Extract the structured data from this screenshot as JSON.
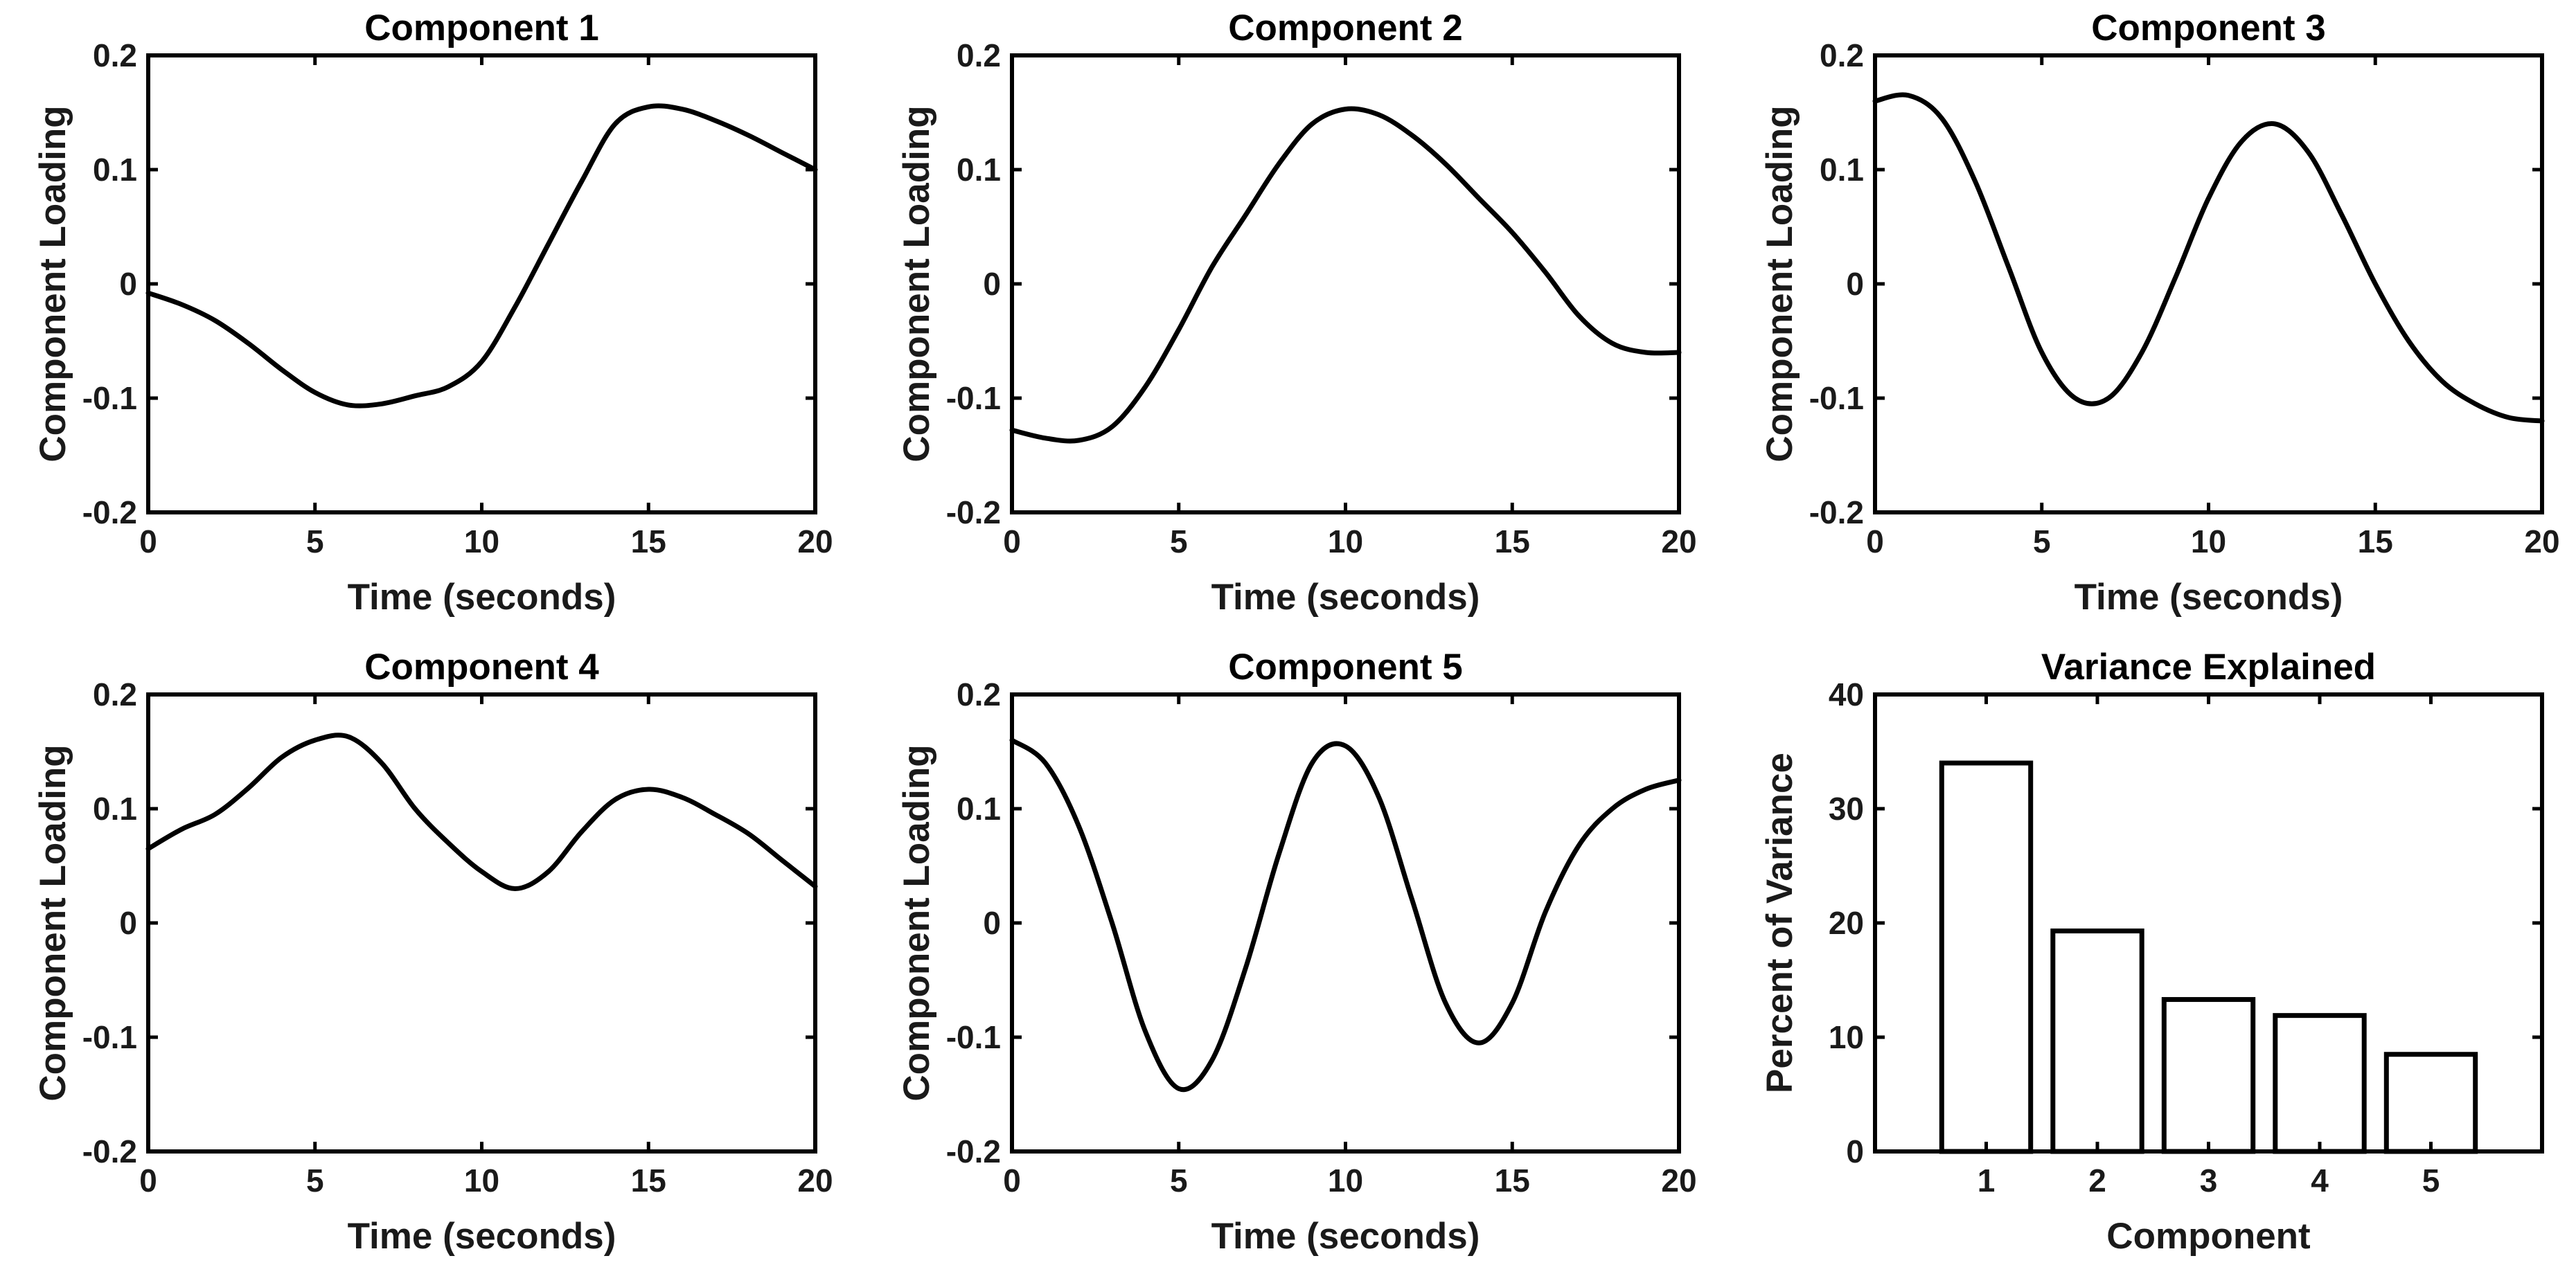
{
  "chart_data": [
    {
      "type": "line",
      "title": "Component 1",
      "xlabel": "Time (seconds)",
      "ylabel": "Component Loading",
      "xlim": [
        0,
        20
      ],
      "ylim": [
        -0.2,
        0.2
      ],
      "xticks": [
        0,
        5,
        10,
        15,
        20
      ],
      "xtick_labels": [
        "0",
        "5",
        "10",
        "15",
        "20"
      ],
      "yticks": [
        -0.2,
        -0.1,
        0,
        0.1,
        0.2
      ],
      "ytick_labels": [
        "-0.2",
        "-0.1",
        "0",
        "0.1",
        "0.2"
      ],
      "series": [
        {
          "name": "Component 1",
          "x": [
            0,
            1,
            2,
            3,
            4,
            5,
            6,
            7,
            8,
            9,
            10,
            11,
            12,
            13,
            14,
            15,
            16,
            17,
            18,
            19,
            20
          ],
          "values": [
            -0.008,
            -0.018,
            -0.032,
            -0.052,
            -0.075,
            -0.095,
            -0.106,
            -0.105,
            -0.098,
            -0.09,
            -0.068,
            -0.02,
            0.035,
            0.09,
            0.14,
            0.155,
            0.153,
            0.143,
            0.13,
            0.115,
            0.1
          ]
        }
      ]
    },
    {
      "type": "line",
      "title": "Component 2",
      "xlabel": "Time (seconds)",
      "ylabel": "Component Loading",
      "xlim": [
        0,
        20
      ],
      "ylim": [
        -0.2,
        0.2
      ],
      "xticks": [
        0,
        5,
        10,
        15,
        20
      ],
      "xtick_labels": [
        "0",
        "5",
        "10",
        "15",
        "20"
      ],
      "yticks": [
        -0.2,
        -0.1,
        0,
        0.1,
        0.2
      ],
      "ytick_labels": [
        "-0.2",
        "-0.1",
        "0",
        "0.1",
        "0.2"
      ],
      "series": [
        {
          "name": "Component 2",
          "x": [
            0,
            1,
            2,
            3,
            4,
            5,
            6,
            7,
            8,
            9,
            10,
            11,
            12,
            13,
            14,
            15,
            16,
            17,
            18,
            19,
            20
          ],
          "values": [
            -0.128,
            -0.135,
            -0.137,
            -0.125,
            -0.09,
            -0.04,
            0.015,
            0.06,
            0.105,
            0.14,
            0.153,
            0.148,
            0.13,
            0.105,
            0.075,
            0.045,
            0.01,
            -0.028,
            -0.052,
            -0.06,
            -0.06
          ]
        }
      ]
    },
    {
      "type": "line",
      "title": "Component 3",
      "xlabel": "Time (seconds)",
      "ylabel": "Component Loading",
      "xlim": [
        0,
        20
      ],
      "ylim": [
        -0.2,
        0.2
      ],
      "xticks": [
        0,
        5,
        10,
        15,
        20
      ],
      "xtick_labels": [
        "0",
        "5",
        "10",
        "15",
        "20"
      ],
      "yticks": [
        -0.2,
        -0.1,
        0,
        0.1,
        0.2
      ],
      "ytick_labels": [
        "-0.2",
        "-0.1",
        "0",
        "0.1",
        "0.2"
      ],
      "series": [
        {
          "name": "Component 3",
          "x": [
            0,
            1,
            2,
            3,
            4,
            5,
            6,
            7,
            8,
            9,
            10,
            11,
            12,
            13,
            14,
            15,
            16,
            17,
            18,
            19,
            20
          ],
          "values": [
            0.16,
            0.165,
            0.145,
            0.09,
            0.015,
            -0.06,
            -0.1,
            -0.1,
            -0.06,
            0.005,
            0.075,
            0.125,
            0.14,
            0.115,
            0.06,
            0.0,
            -0.05,
            -0.085,
            -0.105,
            -0.117,
            -0.12
          ]
        }
      ]
    },
    {
      "type": "line",
      "title": "Component 4",
      "xlabel": "Time (seconds)",
      "ylabel": "Component Loading",
      "xlim": [
        0,
        20
      ],
      "ylim": [
        -0.2,
        0.2
      ],
      "xticks": [
        0,
        5,
        10,
        15,
        20
      ],
      "xtick_labels": [
        "0",
        "5",
        "10",
        "15",
        "20"
      ],
      "yticks": [
        -0.2,
        -0.1,
        0,
        0.1,
        0.2
      ],
      "ytick_labels": [
        "-0.2",
        "-0.1",
        "0",
        "0.1",
        "0.2"
      ],
      "series": [
        {
          "name": "Component 4",
          "x": [
            0,
            1,
            2,
            3,
            4,
            5,
            6,
            7,
            8,
            9,
            10,
            11,
            12,
            13,
            14,
            15,
            16,
            17,
            18,
            19,
            20
          ],
          "values": [
            0.065,
            0.082,
            0.095,
            0.118,
            0.145,
            0.16,
            0.163,
            0.14,
            0.1,
            0.07,
            0.045,
            0.03,
            0.045,
            0.08,
            0.108,
            0.117,
            0.11,
            0.095,
            0.078,
            0.055,
            0.032
          ]
        }
      ]
    },
    {
      "type": "line",
      "title": "Component 5",
      "xlabel": "Time (seconds)",
      "ylabel": "Component Loading",
      "xlim": [
        0,
        20
      ],
      "ylim": [
        -0.2,
        0.2
      ],
      "xticks": [
        0,
        5,
        10,
        15,
        20
      ],
      "xtick_labels": [
        "0",
        "5",
        "10",
        "15",
        "20"
      ],
      "yticks": [
        -0.2,
        -0.1,
        0,
        0.1,
        0.2
      ],
      "ytick_labels": [
        "-0.2",
        "-0.1",
        "0",
        "0.1",
        "0.2"
      ],
      "series": [
        {
          "name": "Component 5",
          "x": [
            0,
            1,
            2,
            3,
            4,
            5,
            6,
            7,
            8,
            9,
            10,
            11,
            12,
            13,
            14,
            15,
            16,
            17,
            18,
            19,
            20
          ],
          "values": [
            0.16,
            0.14,
            0.085,
            0.0,
            -0.095,
            -0.145,
            -0.12,
            -0.04,
            0.06,
            0.14,
            0.155,
            0.11,
            0.02,
            -0.07,
            -0.105,
            -0.07,
            0.01,
            0.068,
            0.1,
            0.117,
            0.125
          ]
        }
      ]
    },
    {
      "type": "bar",
      "title": "Variance Explained",
      "xlabel": "Component",
      "ylabel": "Percent of Variance",
      "categories": [
        "1",
        "2",
        "3",
        "4",
        "5"
      ],
      "values": [
        34,
        19.3,
        13.3,
        11.9,
        8.5
      ],
      "xlim": [
        0,
        6
      ],
      "ylim": [
        0,
        40
      ],
      "yticks": [
        0,
        10,
        20,
        30,
        40
      ],
      "ytick_labels": [
        "0",
        "10",
        "20",
        "30",
        "40"
      ]
    }
  ]
}
